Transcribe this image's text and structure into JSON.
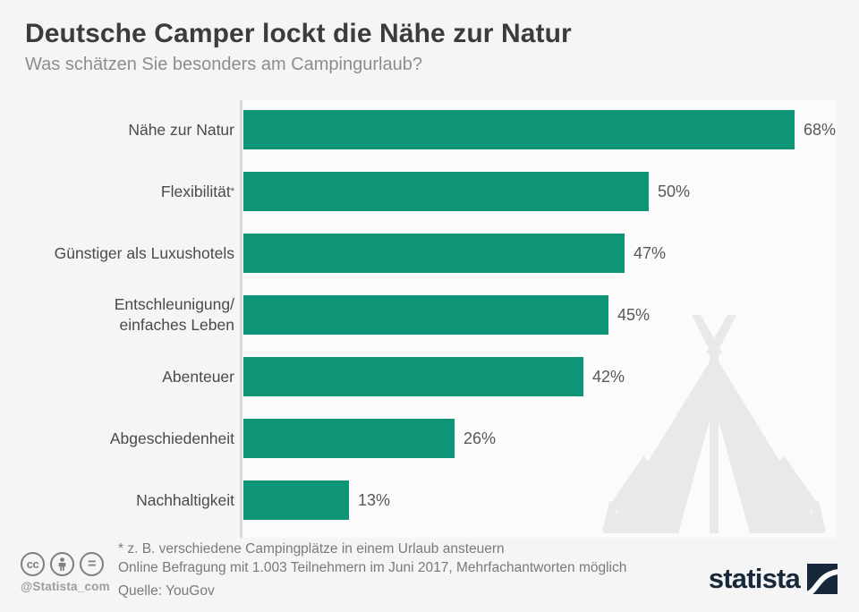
{
  "header": {
    "title": "Deutsche Camper lockt die Nähe zur Natur",
    "subtitle": "Was schätzen Sie besonders am Campingurlaub?"
  },
  "chart_data": {
    "type": "bar",
    "orientation": "horizontal",
    "title": "Deutsche Camper lockt die Nähe zur Natur",
    "categories": [
      "Nähe zur Natur",
      "Flexibilität*",
      "Günstiger als Luxushotels",
      "Entschleunigung/\neinfaches Leben",
      "Abenteuer",
      "Abgeschiedenheit",
      "Nachhaltigkeit"
    ],
    "values": [
      68,
      50,
      47,
      45,
      42,
      26,
      13
    ],
    "value_labels": [
      "68%",
      "50%",
      "47%",
      "45%",
      "42%",
      "26%",
      "13%"
    ],
    "unit": "%",
    "xlim": [
      0,
      73
    ],
    "grid": false,
    "legend": "none",
    "bar_color": "#0e9476"
  },
  "footer": {
    "footnote": "* z. B. verschiedene Campingplätze in einem Urlaub ansteuern",
    "methodology": "Online Befragung mit 1.003 Teilnehmern im Juni 2017, Mehrfachantworten möglich",
    "source": "Quelle: YouGov",
    "social_handle": "@Statista_com",
    "brand": "statista",
    "license_badges": [
      "cc",
      "attribution-person",
      "no-derivatives-equals"
    ]
  },
  "colors": {
    "accent_green": "#0e9476",
    "brand_navy": "#16283a",
    "watermark_gray": "#e9e9e9",
    "axis_gray": "#d9d9d9",
    "background": "#f5f5f6"
  },
  "icons": {
    "watermark": "tent-icon",
    "cc_label": "cc",
    "equals_label": "="
  }
}
